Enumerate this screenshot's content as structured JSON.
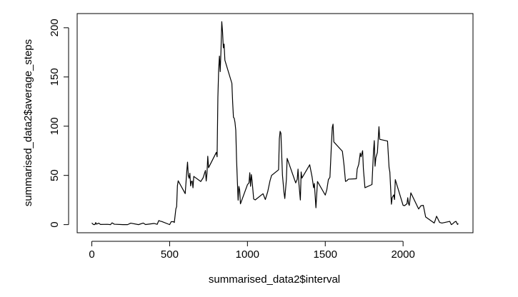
{
  "chart_data": {
    "type": "line",
    "x_label": "summarised_data2$interval",
    "y_label": "summarised_data2$average_steps",
    "x": [
      0,
      10,
      20,
      25,
      30,
      45,
      55,
      100,
      120,
      130,
      145,
      200,
      230,
      250,
      300,
      330,
      345,
      400,
      420,
      430,
      440,
      450,
      500,
      510,
      525,
      530,
      540,
      545,
      550,
      555,
      600,
      610,
      615,
      620,
      625,
      630,
      635,
      640,
      645,
      650,
      655,
      700,
      715,
      730,
      735,
      740,
      745,
      750,
      800,
      805,
      810,
      815,
      820,
      825,
      830,
      835,
      840,
      845,
      850,
      855,
      900,
      905,
      910,
      915,
      920,
      925,
      930,
      935,
      940,
      945,
      950,
      955,
      1000,
      1010,
      1015,
      1020,
      1025,
      1030,
      1040,
      1050,
      1100,
      1115,
      1130,
      1145,
      1155,
      1200,
      1205,
      1210,
      1215,
      1225,
      1235,
      1240,
      1250,
      1255,
      1310,
      1320,
      1325,
      1330,
      1340,
      1345,
      1350,
      1400,
      1415,
      1425,
      1430,
      1440,
      1450,
      1500,
      1510,
      1520,
      1530,
      1535,
      1540,
      1545,
      1550,
      1555,
      1610,
      1620,
      1630,
      1640,
      1645,
      1650,
      1700,
      1705,
      1715,
      1725,
      1730,
      1740,
      1745,
      1755,
      1800,
      1810,
      1815,
      1820,
      1825,
      1835,
      1845,
      1850,
      1900,
      1910,
      1915,
      1925,
      1930,
      1940,
      1945,
      1950,
      2000,
      2010,
      2025,
      2030,
      2035,
      2040,
      2050,
      2100,
      2115,
      2130,
      2145,
      2200,
      2205,
      2215,
      2220,
      2235,
      2250,
      2300,
      2310,
      2320,
      2330,
      2340,
      2350,
      2355
    ],
    "values": [
      1.7,
      0.1,
      0.1,
      2.1,
      0.5,
      1.5,
      0.2,
      0.3,
      0,
      1.8,
      0.4,
      0,
      0,
      1.5,
      0,
      1.6,
      0.1,
      1.2,
      0.3,
      4.1,
      3.5,
      3.1,
      0,
      3.0,
      3.0,
      2.1,
      16.0,
      18.3,
      39.5,
      44.5,
      31.5,
      53.8,
      63.5,
      49.9,
      47.1,
      52.2,
      39.3,
      44.0,
      44.2,
      37.4,
      49.0,
      43.8,
      47.5,
      55.0,
      44.3,
      52.3,
      69.5,
      57.8,
      73.4,
      68.9,
      129.4,
      157.5,
      171.2,
      155.4,
      177.3,
      206.2,
      195.9,
      179.6,
      183.4,
      167.0,
      143.5,
      124.0,
      109.1,
      108.1,
      103.7,
      95.9,
      66.2,
      45.2,
      24.8,
      38.8,
      35.0,
      21.1,
      40.6,
      42.4,
      52.7,
      38.9,
      50.8,
      44.3,
      26.0,
      25.1,
      31.4,
      25.5,
      33.3,
      44.6,
      50.0,
      55.7,
      87.3,
      94.8,
      92.8,
      50.2,
      32.4,
      26.5,
      45.5,
      67.3,
      42.4,
      46.2,
      56.4,
      42.8,
      25.0,
      53.5,
      47.3,
      60.8,
      48.7,
      37.5,
      41.8,
      17.1,
      43.8,
      30.0,
      35.5,
      45.7,
      48.1,
      65.3,
      82.9,
      98.7,
      102.1,
      84.0,
      74.5,
      61.2,
      43.9,
      44.7,
      45.7,
      46.2,
      46.6,
      56.3,
      61.2,
      72.7,
      68.9,
      75.1,
      56.5,
      37.5,
      40.7,
      74.7,
      85.3,
      59.3,
      67.8,
      73.4,
      99.5,
      86.6,
      84.9,
      58.0,
      53.4,
      20.7,
      27.4,
      30.2,
      25.5,
      45.7,
      19.6,
      19.3,
      21.2,
      27.3,
      21.3,
      19.5,
      32.3,
      15.9,
      19.2,
      19.6,
      7.8,
      1.6,
      3.7,
      8.5,
      7.1,
      2.2,
      1.6,
      3.3,
      0,
      1.0,
      2.6,
      3.3,
      0.2,
      1.1
    ],
    "color": "#000000",
    "xlim": [
      -94.2,
      2449.2
    ],
    "xticks": [
      0,
      500,
      1000,
      1500,
      2000
    ],
    "ylim": [
      -8.25,
      214.4
    ],
    "yticks": [
      0,
      50,
      100,
      150,
      200
    ]
  }
}
